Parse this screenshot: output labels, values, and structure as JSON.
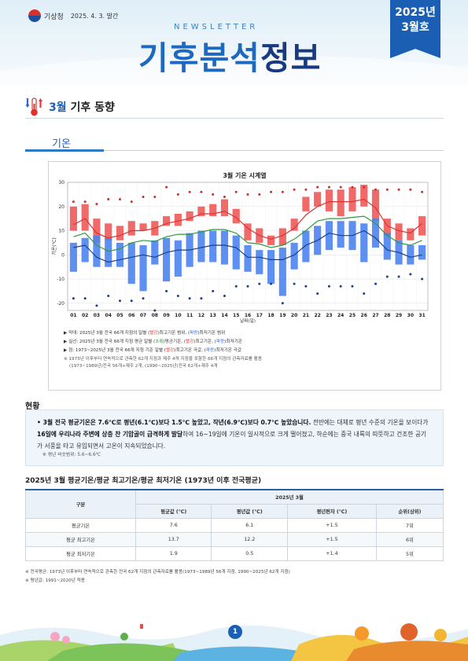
{
  "header": {
    "agency": "기상청",
    "date": "2025. 4. 3. 발간",
    "newsletter": "NEWSLETTER",
    "title_part1": "기후분석",
    "title_part2": "정보",
    "issue_year": "2025년",
    "issue_month": "3월호"
  },
  "section": {
    "month": "3월",
    "title": "기후 동향"
  },
  "subsection": {
    "title": "기온"
  },
  "chart_data": {
    "type": "bar",
    "title": "3월 기온 시계열",
    "xlabel": "날짜(일)",
    "ylabel": "기온(℃)",
    "ylim": [
      -23,
      30
    ],
    "yticks": [
      30,
      20,
      10,
      0,
      -10,
      -20
    ],
    "categories": [
      "01",
      "02",
      "03",
      "04",
      "05",
      "06",
      "07",
      "08",
      "09",
      "10",
      "11",
      "12",
      "13",
      "14",
      "15",
      "16",
      "17",
      "18",
      "19",
      "20",
      "21",
      "22",
      "23",
      "24",
      "25",
      "26",
      "27",
      "28",
      "29",
      "30",
      "31"
    ],
    "series": [
      {
        "name": "막대: 2025년 3월 전국 66개 지점의 일별 (빨강)최고기온 범위",
        "color": "#ef5a5a",
        "type": "range-bar",
        "low": [
          10,
          10,
          5,
          6,
          6,
          8,
          10,
          8,
          12,
          12,
          14,
          16,
          16,
          16,
          13,
          6,
          5,
          4,
          4,
          10,
          18,
          20,
          18,
          16,
          18,
          20,
          14,
          8,
          6,
          6,
          8
        ],
        "high": [
          20,
          21,
          15,
          13,
          12,
          14,
          13,
          14,
          16,
          17,
          18,
          20,
          21,
          23,
          19,
          13,
          11,
          8,
          11,
          15,
          24,
          26,
          27,
          27,
          28,
          29,
          27,
          15,
          13,
          11,
          16
        ]
      },
      {
        "name": "막대: 2025년 3월 전국 66개 지점의 일별 (파랑)최저기온 범위",
        "color": "#4b84ee",
        "type": "range-bar",
        "low": [
          -7,
          -3,
          -5,
          -5,
          -5,
          -12,
          -15,
          -4,
          -11,
          -9,
          -5,
          -3,
          -3,
          -4,
          -6,
          -7,
          -8,
          -12,
          -17,
          -6,
          -3,
          0,
          2,
          3,
          2,
          -3,
          3,
          -2,
          -4,
          -4,
          -2
        ],
        "high": [
          5,
          7,
          8,
          7,
          5,
          5,
          4,
          6,
          7,
          6,
          9,
          10,
          10,
          10,
          8,
          4,
          2,
          2,
          3,
          5,
          10,
          12,
          14,
          14,
          14,
          13,
          15,
          9,
          6,
          4,
          4
        ]
      },
      {
        "name": "실선: 2025년 3월 전국 66개 지점 평균 일별 (초록)평균기온",
        "color": "#2f9a3d",
        "type": "line",
        "values": [
          7.5,
          9,
          4,
          1.5,
          2.5,
          5,
          6,
          5.5,
          7.5,
          8.5,
          8.5,
          9.5,
          10.5,
          10.5,
          9,
          5,
          4.5,
          3,
          4,
          6.5,
          10,
          14,
          15,
          15,
          15.5,
          16,
          13,
          8,
          5,
          4,
          6
        ]
      },
      {
        "name": "실선: 2025년 3월 전국 66개 지점 평균 일별 (빨강)최고기온",
        "color": "#d93434",
        "type": "line",
        "values": [
          12.5,
          15,
          9,
          7,
          8,
          10,
          10,
          11,
          13,
          14,
          15,
          17,
          17,
          18,
          15.5,
          11,
          8,
          6.5,
          8,
          11,
          16.5,
          20,
          22,
          22,
          22,
          23,
          19.5,
          12,
          10,
          9,
          13
        ]
      },
      {
        "name": "실선: 2025년 3월 전국 66개 지점 평균 일별 (파랑)최저기온",
        "color": "#1b3f8a",
        "type": "line",
        "values": [
          3,
          4,
          -1,
          -3,
          -2,
          -1,
          0,
          -1,
          1,
          2,
          2,
          3,
          4,
          4,
          3,
          -1,
          -1,
          -2,
          -2,
          0,
          4,
          6,
          9,
          8,
          8,
          10,
          7,
          2,
          1,
          -1,
          0
        ]
      },
      {
        "name": "점: 1973~2025년 3월 전국 66개 지점 기준 일별 (빨강)최고기온 극값",
        "color": "#c53030",
        "type": "dot",
        "values": [
          22,
          22,
          21,
          23,
          23,
          22,
          24,
          24,
          28,
          25,
          26,
          26,
          25,
          24,
          26,
          25,
          25,
          26,
          26,
          27,
          27,
          28,
          28,
          28,
          28,
          28,
          27,
          27,
          27,
          27,
          26
        ]
      },
      {
        "name": "점: 1973~2025년 3월 전국 66개 지점 기준 일별 (파랑)최저기온 극값",
        "color": "#1a3f8c",
        "type": "dot",
        "values": [
          -18,
          -18,
          -21,
          -17,
          -19,
          -19,
          -18,
          -23,
          -15,
          -17,
          -18,
          -18,
          -15,
          -17,
          -13,
          -13,
          -12,
          -12,
          -20,
          -12,
          -13,
          -16,
          -13,
          -13,
          -13,
          -16,
          -12,
          -9,
          -9,
          -8,
          -10
        ]
      }
    ]
  },
  "legend": {
    "line1a": "▶ 막대: 2025년 3월 전국 66개 지점의 일별 (",
    "line1b": "빨강",
    "line1c": ")최고기온 범위, (",
    "line1d": "파랑",
    "line1e": ")최저기온 범위",
    "line2a": "▶ 실선: 2025년 3월 전국 66개 지점 평균 일별 (",
    "line2b": "초록",
    "line2c": ")평균기온, (",
    "line2d": "빨강",
    "line2e": ")최고기온, (",
    "line2f": "파랑",
    "line2g": ")최저기온",
    "line3a": "▶ 점: 1973~2025년 3월 전국 66개 지점 기준 일별 (",
    "line3b": "빨강",
    "line3c": ")최고기온 극값, (",
    "line3d": "파랑",
    "line3e": ")최저기온 극값",
    "line4": "※ 1973년 이후부터 연속적으로 관측한 62개 지점과 제주 4개 지점을 포함한 66개 지점의 관측자료를 활용",
    "line5": "(1973~1989년)전국 56개+제주 2개, (1990~2025년)전국 62개+제주 4개"
  },
  "current": {
    "title": "현황",
    "p1": "• 3월 전국 평균기온은 7.6℃로 평년(6.1℃)보다 1.5℃ 높았고, 작년(6.9℃)보다 0.7℃ 높았습니다.",
    "p2": " 전반에는 대체로 평년 수준의 기온을 보이다가 ",
    "p3": "16일",
    "p4": "에 우리나라 주변에 상층 찬 기압골이 급격하게 발달",
    "p5": "하여 16~19일에 기온이 일시적으로 크게 떨어졌고, 하순에는 중국 내륙의 따뜻하고 건조한 공기가 서풍을 타고 유입되면서 고온이 지속되었습니다.",
    "note": "※ 평년 비슷범위: 5.6~6.6℃"
  },
  "table": {
    "title": "2025년 3월 평균기온/평균 최고기온/평균 최저기온 (1973년 이후 전국평균)",
    "group_header": "2025년 3월",
    "col_item": "구분",
    "columns": [
      "평균값 (℃)",
      "평년값 (℃)",
      "평년편차 (℃)",
      "순위(상위)"
    ],
    "rows": [
      {
        "label": "평균기온",
        "values": [
          "7.6",
          "6.1",
          "+1.5",
          "7위"
        ]
      },
      {
        "label": "평균 최고기온",
        "values": [
          "13.7",
          "12.2",
          "+1.5",
          "6위"
        ]
      },
      {
        "label": "평균 최저기온",
        "values": [
          "1.9",
          "0.5",
          "+1.4",
          "5위"
        ]
      }
    ]
  },
  "footnotes": {
    "f1": "※ 전국평균: 1973년 이후부터 연속적으로 관측한 전국 62개 지점의 관측자료를 활용(1973~1989년 56개 지점, 1990~2025년 62개 지점)",
    "f2": "※ 평년값: 1991~2020년 적용"
  },
  "page_number": "1"
}
